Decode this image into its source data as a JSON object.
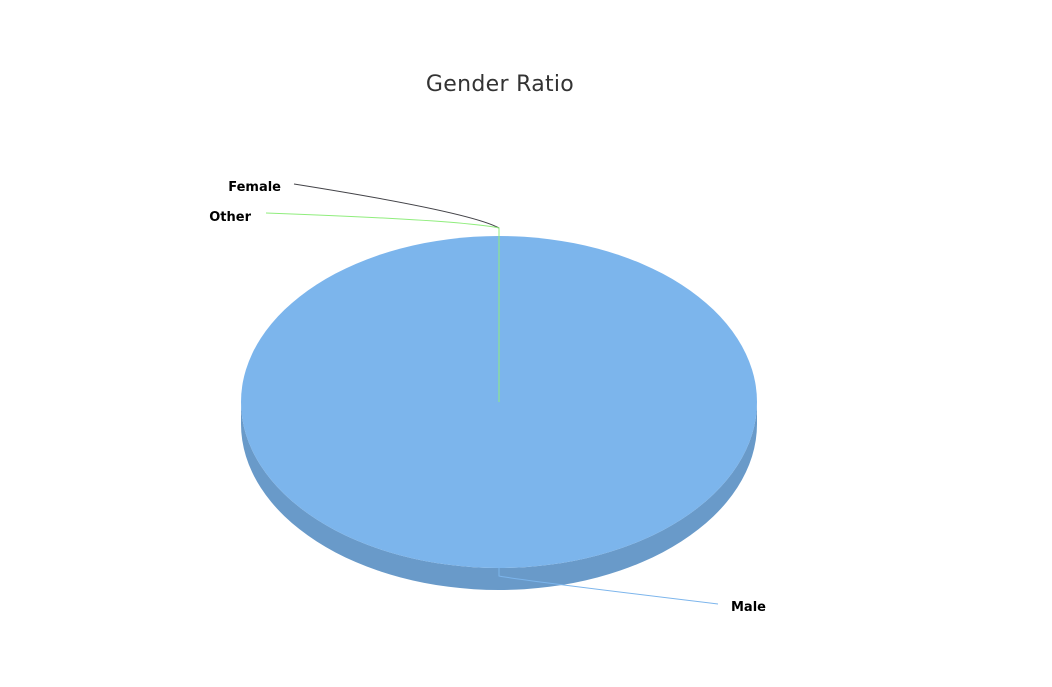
{
  "chart_data": {
    "type": "pie",
    "title": "Gender Ratio",
    "three_d": true,
    "slices": [
      {
        "label": "Male",
        "value": 100,
        "color": "#7cb5ec"
      },
      {
        "label": "Female",
        "value": 0,
        "color": "#434348"
      },
      {
        "label": "Other",
        "value": 0,
        "color": "#90ed7d"
      }
    ],
    "legend": "none",
    "data_labels": "outside with connector lines"
  }
}
